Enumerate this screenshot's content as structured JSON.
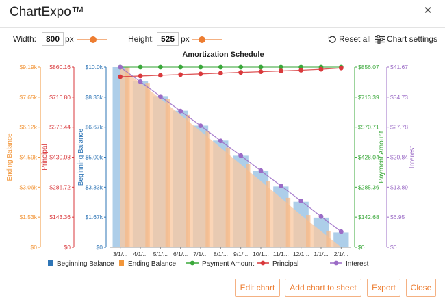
{
  "window": {
    "title": "ChartExpo™",
    "close_icon": "close-icon"
  },
  "controls": {
    "width_label": "Width:",
    "width_value": "800",
    "width_unit": "px",
    "width_slider": 0.55,
    "height_label": "Height:",
    "height_value": "525",
    "height_unit": "px",
    "height_slider": 0.25,
    "reset_label": "Reset all",
    "reset_icon": "reset-icon",
    "settings_label": "Chart settings",
    "settings_icon": "sliders-icon"
  },
  "chart_data": {
    "type": "bar",
    "title": "Amortization Schedule",
    "categories": [
      "3/1/...",
      "4/1/...",
      "5/1/...",
      "6/1/...",
      "7/1/...",
      "8/1/...",
      "9/1/...",
      "10/1...",
      "11/1...",
      "12/1...",
      "1/1/...",
      "2/1/..."
    ],
    "series": [
      {
        "name": "Beginning Balance",
        "kind": "bar",
        "axis": "beginning",
        "color": "#a9cbe8",
        "values": [
          10000,
          9200,
          8390,
          7580,
          6750,
          5920,
          5080,
          4230,
          3370,
          2520,
          1640,
          820
        ]
      },
      {
        "name": "Ending Balance",
        "kind": "area",
        "axis": "ending",
        "color": "#f8c9a3",
        "values": [
          9190,
          8380,
          7580,
          6750,
          5920,
          5080,
          4230,
          3370,
          2520,
          1640,
          820,
          0
        ]
      },
      {
        "name": "Payment Amount",
        "kind": "line",
        "axis": "payment",
        "color": "#3aa83a",
        "values": [
          856.07,
          856.07,
          856.07,
          856.07,
          856.07,
          856.07,
          856.07,
          856.07,
          856.07,
          856.07,
          856.07,
          856.07
        ]
      },
      {
        "name": "Principal",
        "kind": "line",
        "axis": "principal",
        "color": "#d9393c",
        "values": [
          814.4,
          817.8,
          821.2,
          824.6,
          828.0,
          831.5,
          835.0,
          838.5,
          842.0,
          845.5,
          850.0,
          856.0
        ]
      },
      {
        "name": "Interest",
        "kind": "line",
        "axis": "interest",
        "color": "#9b6bc6",
        "values": [
          41.67,
          38.3,
          34.9,
          31.5,
          28.1,
          24.6,
          21.2,
          17.7,
          14.2,
          10.7,
          7.1,
          3.6
        ]
      }
    ],
    "axes": {
      "ending": {
        "label": "Ending Balance",
        "color": "#f2963a",
        "ticks": [
          "$0",
          "$1.53k",
          "$3.06k",
          "$4.59k",
          "$6.12k",
          "$7.65k",
          "$9.19k"
        ],
        "max": 9190
      },
      "principal": {
        "label": "Principal",
        "color": "#d9393c",
        "ticks": [
          "$0",
          "$143.36",
          "$286.72",
          "$430.08",
          "$573.44",
          "$716.80",
          "$860.16"
        ],
        "max": 860.16
      },
      "beginning": {
        "label": "Beginning Balance",
        "color": "#2e75b6",
        "ticks": [
          "$0",
          "$1.67k",
          "$3.33k",
          "$5.00k",
          "$6.67k",
          "$8.33k",
          "$10.0k"
        ],
        "max": 10000
      },
      "payment": {
        "label": "Payment Amount",
        "color": "#3aa83a",
        "ticks": [
          "$0",
          "$142.68",
          "$285.36",
          "$428.04",
          "$570.71",
          "$713.39",
          "$856.07"
        ],
        "max": 856.07
      },
      "interest": {
        "label": "Interest",
        "color": "#9b6bc6",
        "ticks": [
          "$0",
          "$6.95",
          "$13.89",
          "$20.84",
          "$27.78",
          "$34.73",
          "$41.67"
        ],
        "max": 41.67
      }
    },
    "legend": {
      "placement": "bottom"
    }
  },
  "footer": {
    "edit_label": "Edit chart",
    "add_label": "Add chart to sheet",
    "export_label": "Export",
    "close_label": "Close"
  }
}
